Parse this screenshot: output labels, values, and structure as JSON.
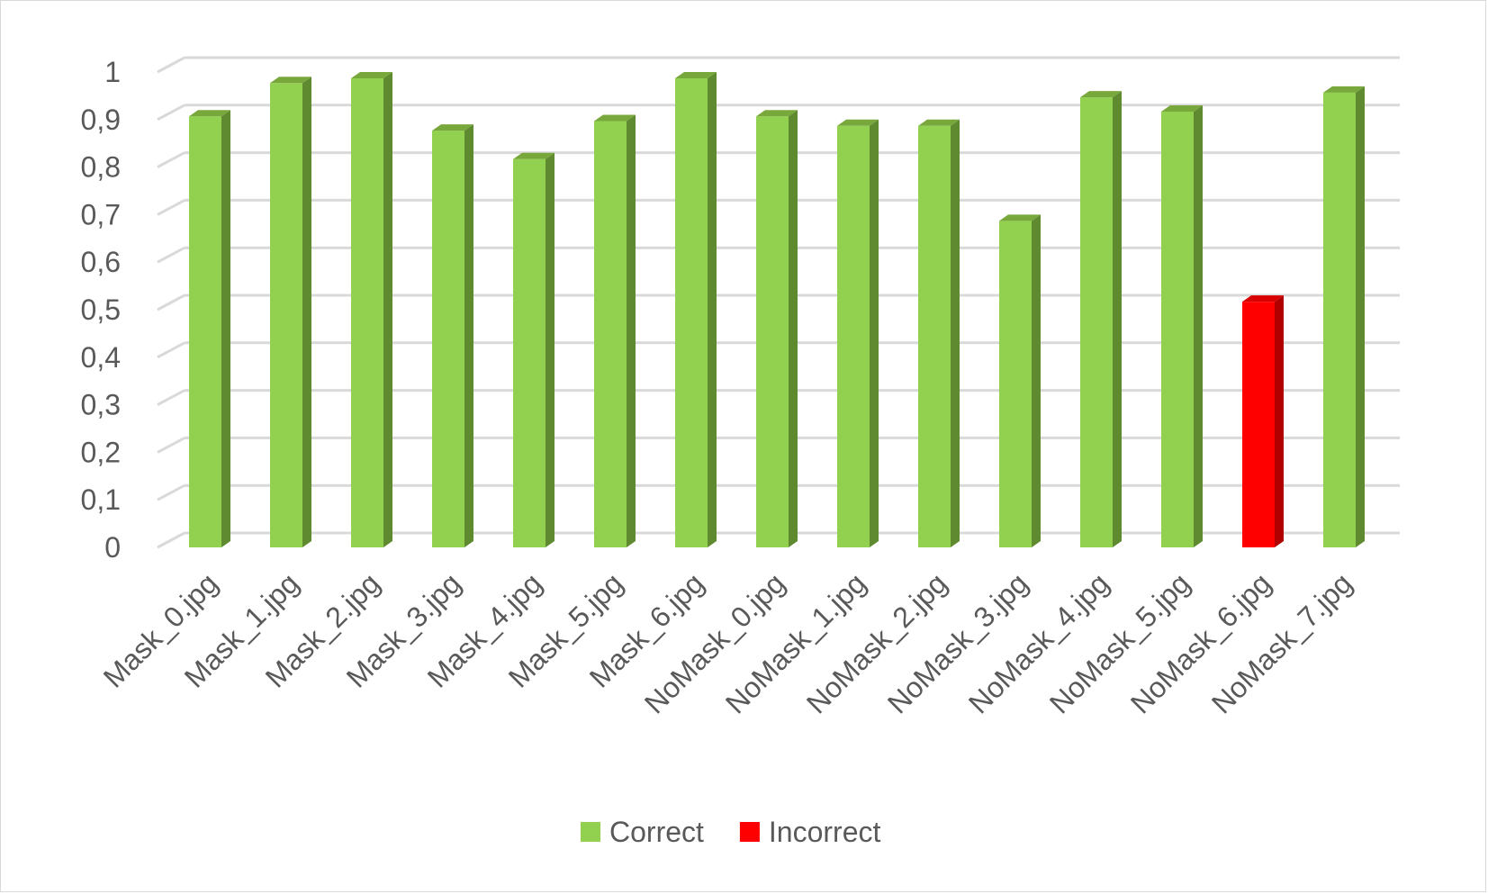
{
  "chart_data": {
    "type": "bar",
    "style": "3d-column",
    "title": "",
    "xlabel": "",
    "ylabel": "",
    "ylim": [
      0,
      1
    ],
    "ytick_step": 0.1,
    "yticks": [
      "0",
      "0,1",
      "0,2",
      "0,3",
      "0,4",
      "0,5",
      "0,6",
      "0,7",
      "0,8",
      "0,9",
      "1"
    ],
    "grid": true,
    "categories": [
      "Mask_0.jpg",
      "Mask_1.jpg",
      "Mask_2.jpg",
      "Mask_3.jpg",
      "Mask_4.jpg",
      "Mask_5.jpg",
      "Mask_6.jpg",
      "NoMask_0.jpg",
      "NoMask_1.jpg",
      "NoMask_2.jpg",
      "NoMask_3.jpg",
      "NoMask_4.jpg",
      "NoMask_5.jpg",
      "NoMask_6.jpg",
      "NoMask_7.jpg"
    ],
    "values": [
      0.92,
      0.99,
      1.0,
      0.89,
      0.83,
      0.91,
      1.0,
      0.92,
      0.9,
      0.9,
      0.7,
      0.96,
      0.93,
      0.53,
      0.97
    ],
    "status": [
      "Correct",
      "Correct",
      "Correct",
      "Correct",
      "Correct",
      "Correct",
      "Correct",
      "Correct",
      "Correct",
      "Correct",
      "Correct",
      "Correct",
      "Correct",
      "Incorrect",
      "Correct"
    ],
    "legend_position": "bottom",
    "legend": [
      {
        "name": "Correct",
        "color": "#92d050",
        "side": "#5f8a30",
        "top": "#78a83c"
      },
      {
        "name": "Incorrect",
        "color": "#ff0000",
        "side": "#b00000",
        "top": "#d80000"
      }
    ]
  }
}
